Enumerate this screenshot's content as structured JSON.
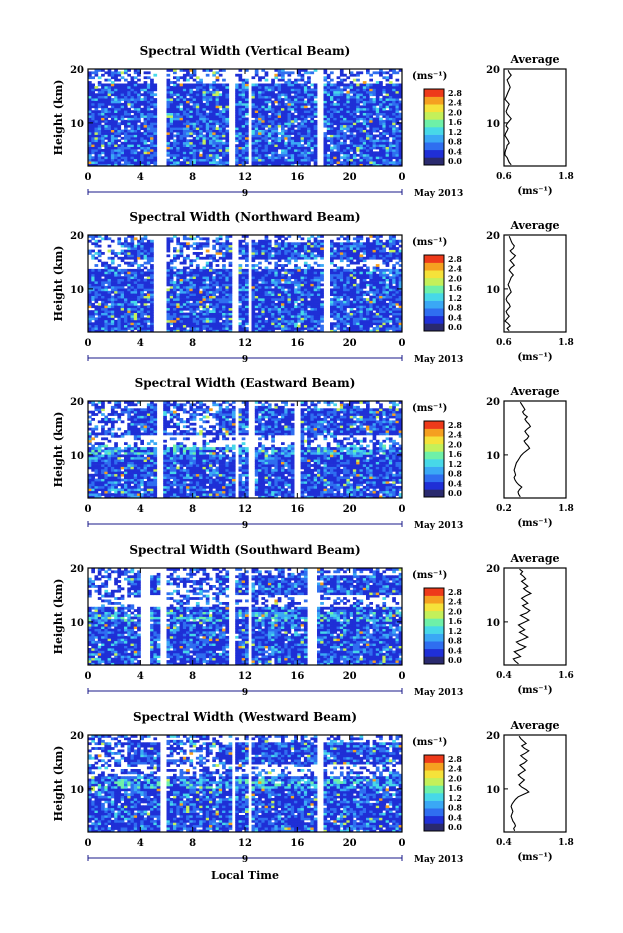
{
  "figure": {
    "xlabel": "Local Time",
    "date_label": "May 2013",
    "day_label": "9",
    "colorbar_unit": "(ms⁻¹)",
    "colorbar_ticks": [
      "0.0",
      "0.4",
      "0.8",
      "1.2",
      "1.6",
      "2.0",
      "2.4",
      "2.8"
    ],
    "colorbar_colors": [
      "#2a2a6e",
      "#1f2fd6",
      "#2f6ef0",
      "#3aa8f5",
      "#47d8e8",
      "#6ef0a8",
      "#c4f05a",
      "#f5e23a",
      "#f5a020",
      "#ee3a1a"
    ],
    "avg_title": "Average",
    "avg_xlabel": "(ms⁻¹)"
  },
  "chart_data": [
    {
      "type": "heatmap",
      "title": "Spectral Width (Vertical Beam)",
      "ylabel": "Height (km)",
      "x_ticks": [
        "0",
        "4",
        "8",
        "12",
        "16",
        "20",
        "0"
      ],
      "y_ticks": [
        "20",
        "10"
      ],
      "xlim": [
        0,
        24
      ],
      "ylim": [
        2,
        20
      ],
      "avg": {
        "xticks": [
          "0.6",
          "1.8"
        ],
        "xlim": [
          0.6,
          1.8
        ],
        "profile": [
          0.74,
          0.7,
          0.68,
          0.66,
          0.62,
          0.62,
          0.63,
          0.65,
          0.66,
          0.7,
          0.68,
          0.65,
          0.62,
          0.63,
          0.66,
          0.68,
          0.64,
          0.66,
          0.7,
          0.74,
          0.7,
          0.66,
          0.64,
          0.66,
          0.68,
          0.7,
          0.66,
          0.62,
          0.64,
          0.66,
          0.68,
          0.7,
          0.72,
          0.7,
          0.68,
          0.66,
          0.7,
          0.74,
          0.7,
          0.68
        ]
      }
    },
    {
      "type": "heatmap",
      "title": "Spectral Width (Northward Beam)",
      "ylabel": "Height (km)",
      "x_ticks": [
        "0",
        "4",
        "8",
        "12",
        "16",
        "20",
        "0"
      ],
      "y_ticks": [
        "20",
        "10"
      ],
      "xlim": [
        0,
        24
      ],
      "ylim": [
        2,
        20
      ],
      "avg": {
        "xticks": [
          "0.6",
          "1.8"
        ],
        "xlim": [
          0.6,
          1.8
        ],
        "profile": [
          0.7,
          0.66,
          0.72,
          0.68,
          0.62,
          0.66,
          0.7,
          0.66,
          0.64,
          0.68,
          0.72,
          0.7,
          0.66,
          0.64,
          0.66,
          0.7,
          0.74,
          0.72,
          0.7,
          0.68,
          0.7,
          0.72,
          0.74,
          0.78,
          0.74,
          0.7,
          0.74,
          0.8,
          0.76,
          0.72,
          0.78,
          0.82,
          0.76,
          0.72,
          0.78,
          0.8,
          0.76,
          0.74,
          0.72,
          0.7
        ]
      }
    },
    {
      "type": "heatmap",
      "title": "Spectral Width (Eastward Beam)",
      "ylabel": "Height (km)",
      "x_ticks": [
        "0",
        "4",
        "8",
        "12",
        "16",
        "20",
        "0"
      ],
      "y_ticks": [
        "20",
        "10"
      ],
      "xlim": [
        0,
        24
      ],
      "ylim": [
        2,
        20
      ],
      "avg": {
        "xticks": [
          "0.2",
          "1.8"
        ],
        "xlim": [
          0.2,
          1.8
        ],
        "profile": [
          0.62,
          0.58,
          0.56,
          0.6,
          0.66,
          0.58,
          0.52,
          0.48,
          0.46,
          0.5,
          0.48,
          0.46,
          0.48,
          0.5,
          0.52,
          0.56,
          0.6,
          0.64,
          0.7,
          0.78,
          0.86,
          0.82,
          0.76,
          0.72,
          0.8,
          0.84,
          0.78,
          0.74,
          0.8,
          0.88,
          0.84,
          0.78,
          0.74,
          0.8,
          0.72,
          0.68,
          0.74,
          0.7,
          0.66,
          0.62
        ]
      }
    },
    {
      "type": "heatmap",
      "title": "Spectral Width (Southward Beam)",
      "ylabel": "Height (km)",
      "x_ticks": [
        "0",
        "4",
        "8",
        "12",
        "16",
        "20",
        "0"
      ],
      "y_ticks": [
        "20",
        "10"
      ],
      "xlim": [
        0,
        24
      ],
      "ylim": [
        2,
        20
      ],
      "avg": {
        "xticks": [
          "0.4",
          "1.6"
        ],
        "xlim": [
          0.4,
          1.6
        ],
        "profile": [
          0.68,
          0.62,
          0.58,
          0.72,
          0.66,
          0.6,
          0.74,
          0.82,
          0.7,
          0.64,
          0.76,
          0.86,
          0.78,
          0.7,
          0.8,
          0.74,
          0.68,
          0.78,
          0.88,
          0.8,
          0.72,
          0.84,
          0.9,
          0.82,
          0.76,
          0.86,
          0.8,
          0.74,
          0.82,
          0.92,
          0.84,
          0.78,
          0.86,
          0.8,
          0.74,
          0.82,
          0.78,
          0.72,
          0.76,
          0.7
        ]
      }
    },
    {
      "type": "heatmap",
      "title": "Spectral Width (Westward Beam)",
      "ylabel": "Height (km)",
      "x_ticks": [
        "0",
        "4",
        "8",
        "12",
        "16",
        "20",
        "0"
      ],
      "y_ticks": [
        "20",
        "10"
      ],
      "xlim": [
        0,
        24
      ],
      "ylim": [
        2,
        20
      ],
      "avg": {
        "xticks": [
          "0.4",
          "1.8"
        ],
        "xlim": [
          0.4,
          1.8
        ],
        "profile": [
          0.64,
          0.62,
          0.66,
          0.64,
          0.6,
          0.58,
          0.56,
          0.58,
          0.6,
          0.58,
          0.56,
          0.58,
          0.62,
          0.66,
          0.72,
          0.84,
          0.96,
          0.9,
          0.8,
          0.74,
          0.8,
          0.86,
          0.78,
          0.72,
          0.8,
          0.88,
          0.82,
          0.76,
          0.86,
          0.92,
          0.84,
          0.78,
          0.88,
          0.96,
          0.86,
          0.8,
          0.9,
          0.84,
          0.78,
          0.74
        ]
      }
    }
  ]
}
